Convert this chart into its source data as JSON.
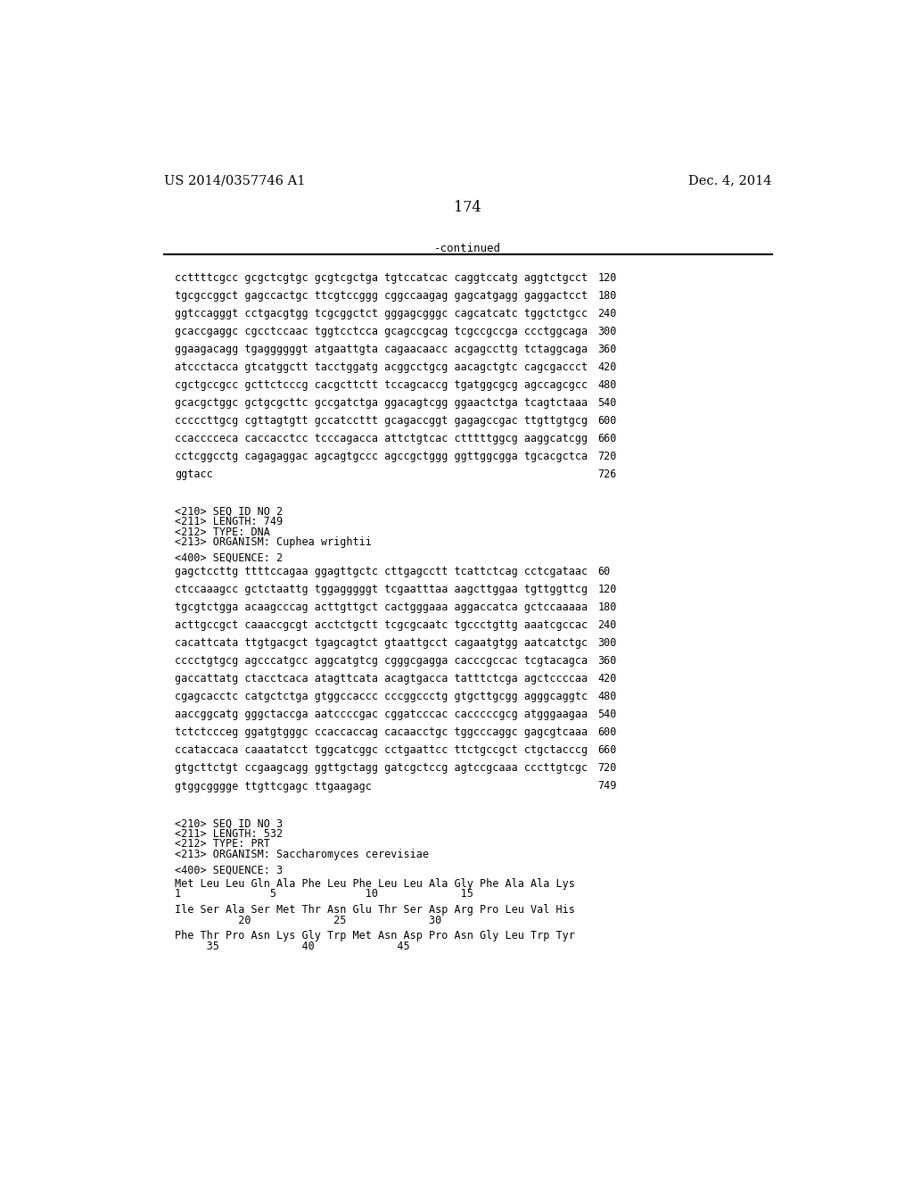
{
  "patent_number": "US 2014/0357746 A1",
  "date": "Dec. 4, 2014",
  "page_number": "174",
  "continued_label": "-continued",
  "bg_color": "#ffffff",
  "text_color": "#000000",
  "lines": [
    {
      "text": "ccttttcgcc gcgctcgtgc gcgtcgctga tgtccatcac caggtccatg aggtctgcct",
      "num": "120"
    },
    {
      "text": "tgcgccggct gagccactgc ttcgtccggg cggccaagag gagcatgagg gaggactcct",
      "num": "180"
    },
    {
      "text": "ggtccagggt cctgacgtgg tcgcggctct gggagcgggc cagcatcatc tggctctgcc",
      "num": "240"
    },
    {
      "text": "gcaccgaggc cgcctccaac tggtcctcca gcagccgcag tcgccgccga ccctggcaga",
      "num": "300"
    },
    {
      "text": "ggaagacagg tgaggggggt atgaattgta cagaacaacc acgagccttg tctaggcaga",
      "num": "360"
    },
    {
      "text": "atccctacca gtcatggctt tacctggatg acggcctgcg aacagctgtc cagcgaccct",
      "num": "420"
    },
    {
      "text": "cgctgccgcc gcttctcccg cacgcttctt tccagcaccg tgatggcgcg agccagcgcc",
      "num": "480"
    },
    {
      "text": "gcacgctggc gctgcgcttc gccgatctga ggacagtcgg ggaactctga tcagtctaaa",
      "num": "540"
    },
    {
      "text": "cccccttgcg cgttagtgtt gccatccttt gcagaccggt gagagccgac ttgttgtgcg",
      "num": "600"
    },
    {
      "text": "ccacccceca caccacctcc tcccagacca attctgtcac ctttttggcg aaggcatcgg",
      "num": "660"
    },
    {
      "text": "cctcggcctg cagagaggac agcagtgccc agccgctggg ggttggcgga tgcacgctca",
      "num": "720"
    },
    {
      "text": "ggtacc",
      "num": "726"
    }
  ],
  "section2_header": [
    "<210> SEQ ID NO 2",
    "<211> LENGTH: 749",
    "<212> TYPE: DNA",
    "<213> ORGANISM: Cuphea wrightii"
  ],
  "section2_seq_label": "<400> SEQUENCE: 2",
  "seq2_lines": [
    {
      "text": "gagctccttg ttttccagaa ggagttgctc cttgagcctt tcattctcag cctcgataac",
      "num": "60"
    },
    {
      "text": "ctccaaagcc gctctaattg tggagggggt tcgaatttaa aagcttggaa tgttggttcg",
      "num": "120"
    },
    {
      "text": "tgcgtctgga acaagcccag acttgttgct cactgggaaa aggaccatca gctccaaaaa",
      "num": "180"
    },
    {
      "text": "acttgccgct caaaccgcgt acctctgctt tcgcgcaatc tgccctgttg aaatcgccac",
      "num": "240"
    },
    {
      "text": "cacattcata ttgtgacgct tgagcagtct gtaattgcct cagaatgtgg aatcatctgc",
      "num": "300"
    },
    {
      "text": "cccctgtgcg agcccatgcc aggcatgtcg cgggcgagga cacccgccac tcgtacagca",
      "num": "360"
    },
    {
      "text": "gaccattatg ctacctcaca atagttcata acagtgacca tatttctcga agctccccaa",
      "num": "420"
    },
    {
      "text": "cgagcacctc catgctctga gtggccaccc cccggccctg gtgcttgcgg agggcaggtc",
      "num": "480"
    },
    {
      "text": "aaccggcatg gggctaccga aatccccgac cggatcccac cacccccgcg atgggaagaa",
      "num": "540"
    },
    {
      "text": "tctctccceg ggatgtgggc ccaccaccag cacaacctgc tggcccaggc gagcgtcaaa",
      "num": "600"
    },
    {
      "text": "ccataccaca caaatatcct tggcatcggc cctgaattcc ttctgccgct ctgctacccg",
      "num": "660"
    },
    {
      "text": "gtgcttctgt ccgaagcagg ggttgctagg gatcgctccg agtccgcaaa cccttgtcgc",
      "num": "720"
    },
    {
      "text": "gtggcgggge ttgttcgagc ttgaagagc",
      "num": "749"
    }
  ],
  "section3_header": [
    "<210> SEQ ID NO 3",
    "<211> LENGTH: 532",
    "<212> TYPE: PRT",
    "<213> ORGANISM: Saccharomyces cerevisiae"
  ],
  "section3_seq_label": "<400> SEQUENCE: 3",
  "seq3_lines": [
    {
      "text": "Met Leu Leu Gln Ala Phe Leu Phe Leu Leu Ala Gly Phe Ala Ala Lys",
      "nums": "1              5              10             15"
    },
    {
      "text": "Ile Ser Ala Ser Met Thr Asn Glu Thr Ser Asp Arg Pro Leu Val His",
      "nums": "          20             25             30"
    },
    {
      "text": "Phe Thr Pro Asn Lys Gly Trp Met Asn Asp Pro Asn Gly Leu Trp Tyr",
      "nums": "     35             40             45"
    }
  ]
}
